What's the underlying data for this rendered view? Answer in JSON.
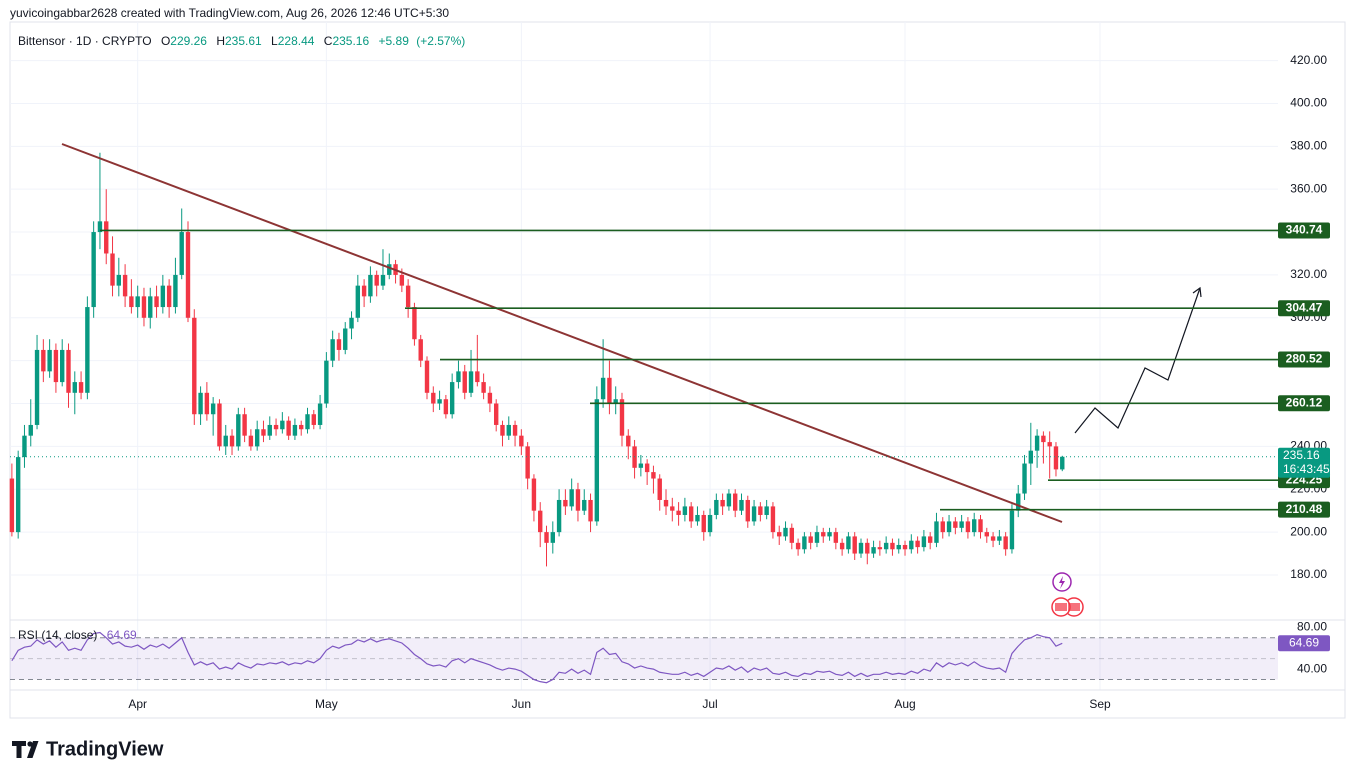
{
  "header": {
    "attribution": "yuvicoingabbar2628 created with TradingView.com, Aug 26, 2026 12:46 UTC+5:30"
  },
  "chart_data": [
    {
      "type": "candlestick",
      "title": "Bittensor · 1D · CRYPTO",
      "ohlc_labels": [
        "O",
        "H",
        "L",
        "C"
      ],
      "change": {
        "value": 5.89,
        "label": "+5.89"
      },
      "change_percent": {
        "value": 2.57,
        "label": "(+2.57%)"
      },
      "countdown": "16:43:45",
      "up_color": "#089981",
      "down_color": "#f23645",
      "level_color": "#1b5e20",
      "grid": true,
      "xlim": [
        -0.3,
        201.3
      ],
      "xticks": [
        {
          "value": 20,
          "label": "Apr"
        },
        {
          "value": 50,
          "label": "May"
        },
        {
          "value": 81,
          "label": "Jun"
        },
        {
          "value": 111,
          "label": "Jul"
        },
        {
          "value": 142,
          "label": "Aug"
        },
        {
          "value": 173,
          "label": "Sep"
        }
      ],
      "ylim": [
        159,
        438
      ],
      "yticks": [
        {
          "value": 180,
          "label": "180.00"
        },
        {
          "value": 200,
          "label": "200.00"
        },
        {
          "value": 220,
          "label": "220.00"
        },
        {
          "value": 240,
          "label": "240.00"
        },
        {
          "value": 260,
          "label": "260.00"
        },
        {
          "value": 280,
          "label": "280.00"
        },
        {
          "value": 300,
          "label": "300.00"
        },
        {
          "value": 320,
          "label": "320.00"
        },
        {
          "value": 340,
          "label": "340.00"
        },
        {
          "value": 360,
          "label": "360.00"
        },
        {
          "value": 380,
          "label": "380.00"
        },
        {
          "value": 400,
          "label": "400.00"
        },
        {
          "value": 420,
          "label": "420.00"
        }
      ],
      "levels": [
        340.74,
        304.47,
        280.52,
        260.12,
        224.25,
        210.48
      ],
      "candles": [
        [
          225,
          232,
          198,
          200
        ],
        [
          200,
          238,
          197,
          235
        ],
        [
          235,
          250,
          230,
          245
        ],
        [
          245,
          262,
          240,
          250
        ],
        [
          250,
          292,
          248,
          285
        ],
        [
          285,
          290,
          270,
          275
        ],
        [
          275,
          290,
          272,
          285
        ],
        [
          285,
          288,
          265,
          270
        ],
        [
          270,
          290,
          268,
          285
        ],
        [
          285,
          288,
          258,
          265
        ],
        [
          265,
          275,
          255,
          270
        ],
        [
          270,
          275,
          262,
          265
        ],
        [
          265,
          310,
          262,
          305
        ],
        [
          305,
          345,
          300,
          340
        ],
        [
          340,
          377,
          332,
          345
        ],
        [
          345,
          360,
          325,
          330
        ],
        [
          330,
          338,
          310,
          315
        ],
        [
          315,
          328,
          310,
          320
        ],
        [
          320,
          325,
          305,
          310
        ],
        [
          310,
          318,
          302,
          305
        ],
        [
          305,
          315,
          300,
          310
        ],
        [
          310,
          314,
          296,
          300
        ],
        [
          300,
          314,
          295,
          310
        ],
        [
          310,
          315,
          300,
          305
        ],
        [
          305,
          320,
          302,
          315
        ],
        [
          315,
          318,
          300,
          305
        ],
        [
          305,
          328,
          302,
          320
        ],
        [
          320,
          351,
          318,
          340
        ],
        [
          340,
          345,
          298,
          300
        ],
        [
          300,
          304,
          250,
          255
        ],
        [
          255,
          268,
          250,
          265
        ],
        [
          265,
          270,
          252,
          255
        ],
        [
          255,
          263,
          245,
          260
        ],
        [
          260,
          262,
          238,
          240
        ],
        [
          240,
          250,
          236,
          245
        ],
        [
          245,
          248,
          236,
          240
        ],
        [
          240,
          258,
          238,
          255
        ],
        [
          255,
          258,
          242,
          245
        ],
        [
          245,
          248,
          238,
          240
        ],
        [
          240,
          252,
          238,
          248
        ],
        [
          248,
          252,
          242,
          245
        ],
        [
          245,
          254,
          243,
          250
        ],
        [
          250,
          253,
          245,
          248
        ],
        [
          248,
          256,
          246,
          252
        ],
        [
          252,
          254,
          243,
          245
        ],
        [
          245,
          253,
          243,
          250
        ],
        [
          250,
          252,
          245,
          248
        ],
        [
          248,
          258,
          246,
          255
        ],
        [
          255,
          257,
          248,
          250
        ],
        [
          250,
          264,
          248,
          260
        ],
        [
          260,
          284,
          258,
          280
        ],
        [
          280,
          294,
          277,
          290
        ],
        [
          290,
          293,
          280,
          285
        ],
        [
          285,
          298,
          283,
          295
        ],
        [
          295,
          303,
          290,
          300
        ],
        [
          300,
          320,
          298,
          315
        ],
        [
          315,
          318,
          305,
          310
        ],
        [
          310,
          324,
          307,
          320
        ],
        [
          320,
          322,
          310,
          315
        ],
        [
          315,
          332,
          313,
          320
        ],
        [
          320,
          330,
          318,
          325
        ],
        [
          325,
          327,
          316,
          320
        ],
        [
          320,
          323,
          312,
          315
        ],
        [
          315,
          318,
          300,
          305
        ],
        [
          305,
          307,
          287,
          290
        ],
        [
          290,
          292,
          277,
          280
        ],
        [
          280,
          282,
          262,
          265
        ],
        [
          265,
          268,
          256,
          260
        ],
        [
          260,
          266,
          257,
          262
        ],
        [
          262,
          264,
          253,
          255
        ],
        [
          255,
          274,
          253,
          270
        ],
        [
          270,
          280,
          267,
          275
        ],
        [
          275,
          278,
          262,
          265
        ],
        [
          265,
          285,
          263,
          275
        ],
        [
          275,
          292,
          268,
          270
        ],
        [
          270,
          274,
          262,
          265
        ],
        [
          265,
          268,
          256,
          260
        ],
        [
          260,
          262,
          247,
          250
        ],
        [
          250,
          252,
          240,
          245
        ],
        [
          245,
          254,
          243,
          250
        ],
        [
          250,
          252,
          240,
          245
        ],
        [
          245,
          248,
          236,
          240
        ],
        [
          240,
          242,
          220,
          225
        ],
        [
          225,
          227,
          205,
          210
        ],
        [
          210,
          214,
          193,
          200
        ],
        [
          200,
          203,
          184,
          195
        ],
        [
          195,
          205,
          190,
          200
        ],
        [
          200,
          220,
          198,
          215
        ],
        [
          215,
          220,
          208,
          212
        ],
        [
          212,
          225,
          210,
          220
        ],
        [
          220,
          223,
          205,
          210
        ],
        [
          210,
          220,
          208,
          215
        ],
        [
          215,
          218,
          200,
          205
        ],
        [
          205,
          268,
          203,
          262
        ],
        [
          262,
          290,
          258,
          272
        ],
        [
          272,
          280,
          255,
          260
        ],
        [
          260,
          268,
          255,
          262
        ],
        [
          262,
          265,
          240,
          245
        ],
        [
          245,
          248,
          234,
          240
        ],
        [
          240,
          243,
          225,
          230
        ],
        [
          230,
          236,
          226,
          232
        ],
        [
          232,
          234,
          222,
          228
        ],
        [
          228,
          231,
          218,
          225
        ],
        [
          225,
          227,
          210,
          215
        ],
        [
          215,
          220,
          208,
          212
        ],
        [
          212,
          216,
          205,
          210
        ],
        [
          210,
          214,
          203,
          208
        ],
        [
          208,
          216,
          205,
          212
        ],
        [
          212,
          214,
          202,
          205
        ],
        [
          205,
          212,
          203,
          208
        ],
        [
          208,
          210,
          196,
          200
        ],
        [
          200,
          211,
          198,
          208
        ],
        [
          208,
          218,
          206,
          215
        ],
        [
          215,
          218,
          208,
          212
        ],
        [
          212,
          220,
          210,
          218
        ],
        [
          218,
          220,
          207,
          210
        ],
        [
          210,
          218,
          208,
          215
        ],
        [
          215,
          217,
          202,
          205
        ],
        [
          205,
          215,
          203,
          212
        ],
        [
          212,
          214,
          205,
          208
        ],
        [
          208,
          215,
          206,
          212
        ],
        [
          212,
          214,
          197,
          200
        ],
        [
          200,
          203,
          194,
          198
        ],
        [
          198,
          205,
          196,
          202
        ],
        [
          202,
          204,
          192,
          195
        ],
        [
          195,
          197,
          189,
          192
        ],
        [
          192,
          200,
          190,
          198
        ],
        [
          198,
          200,
          192,
          195
        ],
        [
          195,
          203,
          193,
          200
        ],
        [
          200,
          202,
          195,
          198
        ],
        [
          198,
          202,
          196,
          200
        ],
        [
          200,
          202,
          192,
          195
        ],
        [
          195,
          197,
          189,
          192
        ],
        [
          192,
          200,
          190,
          198
        ],
        [
          198,
          200,
          187,
          190
        ],
        [
          190,
          197,
          188,
          195
        ],
        [
          195,
          197,
          185,
          190
        ],
        [
          190,
          196,
          188,
          193
        ],
        [
          193,
          196,
          189,
          192
        ],
        [
          192,
          198,
          190,
          195
        ],
        [
          195,
          197,
          189,
          192
        ],
        [
          192,
          197,
          190,
          194
        ],
        [
          194,
          196,
          189,
          192
        ],
        [
          192,
          199,
          190,
          196
        ],
        [
          196,
          198,
          190,
          193
        ],
        [
          193,
          201,
          191,
          198
        ],
        [
          198,
          200,
          192,
          195
        ],
        [
          195,
          209,
          193,
          205
        ],
        [
          205,
          207,
          197,
          200
        ],
        [
          200,
          208,
          198,
          205
        ],
        [
          205,
          207,
          199,
          202
        ],
        [
          202,
          208,
          200,
          205
        ],
        [
          205,
          207,
          197,
          200
        ],
        [
          200,
          209,
          198,
          206
        ],
        [
          206,
          208,
          197,
          200
        ],
        [
          200,
          202,
          195,
          198
        ],
        [
          198,
          200,
          193,
          196
        ],
        [
          196,
          201,
          194,
          198
        ],
        [
          198,
          200,
          189,
          192
        ],
        [
          192,
          213,
          190,
          210
        ],
        [
          210,
          222,
          207,
          218
        ],
        [
          218,
          236,
          215,
          232
        ],
        [
          232,
          251,
          222,
          238
        ],
        [
          238,
          248,
          230,
          245
        ],
        [
          245,
          247,
          232,
          242
        ],
        [
          242,
          247,
          225,
          240
        ],
        [
          240,
          242,
          226,
          229.27
        ],
        [
          229.26,
          235.61,
          228.44,
          235.16
        ]
      ]
    },
    {
      "type": "line",
      "title": "RSI (14, close)",
      "color": "#7e57c2",
      "ylim": [
        20,
        87
      ],
      "yticks": [
        {
          "value": 80,
          "label": "80.00"
        },
        {
          "value": 40,
          "label": "40.00"
        }
      ],
      "levels": [
        70,
        50,
        30
      ],
      "values": [
        48,
        58,
        61,
        62,
        68,
        64,
        67,
        61,
        66,
        58,
        60,
        58,
        68,
        74,
        75,
        70,
        64,
        66,
        62,
        61,
        63,
        59,
        63,
        61,
        64,
        60,
        65,
        70,
        56,
        44,
        47,
        44,
        46,
        40,
        42,
        40,
        46,
        43,
        41,
        45,
        44,
        46,
        45,
        47,
        44,
        46,
        45,
        48,
        46,
        50,
        58,
        62,
        60,
        63,
        64,
        68,
        66,
        69,
        66,
        68,
        69,
        67,
        65,
        60,
        54,
        50,
        45,
        43,
        44,
        42,
        48,
        50,
        46,
        50,
        48,
        46,
        44,
        41,
        39,
        41,
        40,
        38,
        34,
        30,
        28,
        27,
        30,
        37,
        36,
        40,
        36,
        39,
        35,
        56,
        60,
        54,
        55,
        47,
        45,
        41,
        43,
        41,
        40,
        37,
        36,
        35,
        35,
        37,
        34,
        36,
        33,
        37,
        41,
        40,
        43,
        39,
        42,
        37,
        41,
        39,
        41,
        36,
        35,
        37,
        34,
        33,
        36,
        35,
        38,
        37,
        38,
        35,
        34,
        37,
        33,
        36,
        33,
        35,
        35,
        37,
        35,
        36,
        35,
        38,
        36,
        40,
        38,
        46,
        42,
        46,
        44,
        46,
        43,
        47,
        43,
        41,
        40,
        41,
        37,
        55,
        62,
        68,
        70,
        73,
        71,
        70,
        62,
        64.69
      ]
    }
  ],
  "footer": {
    "brand": "TradingView"
  }
}
